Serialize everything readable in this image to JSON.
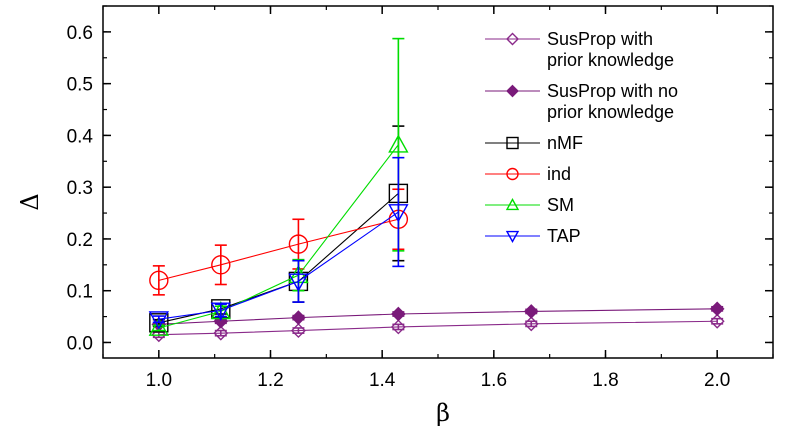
{
  "chart_data": {
    "type": "line",
    "title": "",
    "xlabel": "β",
    "ylabel": "Δ",
    "xlim": [
      0.9,
      2.1
    ],
    "ylim": [
      -0.03,
      0.65
    ],
    "xticks": [
      1.0,
      1.2,
      1.4,
      1.6,
      1.8,
      2.0
    ],
    "xtick_labels": [
      "1.0",
      "1.2",
      "1.4",
      "1.6",
      "1.8",
      "2.0"
    ],
    "yticks": [
      0.0,
      0.1,
      0.2,
      0.3,
      0.4,
      0.5,
      0.6
    ],
    "ytick_labels": [
      "0.0",
      "0.1",
      "0.2",
      "0.3",
      "0.4",
      "0.5",
      "0.6"
    ],
    "grid": false,
    "legend_position": "top-right",
    "series": [
      {
        "name_lines": [
          "SusProp with",
          "prior knowledge"
        ],
        "color": "#8a2a8a",
        "marker": "diamond-open",
        "x": [
          1.0,
          1.111,
          1.25,
          1.429,
          1.667,
          2.0
        ],
        "y": [
          0.015,
          0.018,
          0.023,
          0.03,
          0.036,
          0.041
        ],
        "yerr": [
          0.005,
          0.005,
          0.005,
          0.005,
          0.005,
          0.005
        ]
      },
      {
        "name_lines": [
          "SusProp with no",
          "prior knowledge"
        ],
        "color": "#7a1a7a",
        "marker": "diamond-filled",
        "x": [
          1.0,
          1.111,
          1.25,
          1.429,
          1.667,
          2.0
        ],
        "y": [
          0.035,
          0.041,
          0.048,
          0.055,
          0.06,
          0.065
        ],
        "yerr": [
          0.004,
          0.004,
          0.004,
          0.004,
          0.004,
          0.004
        ]
      },
      {
        "name_lines": [
          "nMF"
        ],
        "color": "#000000",
        "marker": "square-open",
        "x": [
          1.0,
          1.111,
          1.25,
          1.429
        ],
        "y": [
          0.038,
          0.065,
          0.118,
          0.288
        ],
        "yerr": [
          0.006,
          0.01,
          0.04,
          0.13
        ]
      },
      {
        "name_lines": [
          "ind"
        ],
        "color": "#ff0000",
        "marker": "circle-open",
        "x": [
          1.0,
          1.111,
          1.25,
          1.429
        ],
        "y": [
          0.12,
          0.15,
          0.19,
          0.238
        ],
        "yerr": [
          0.028,
          0.038,
          0.048,
          0.058
        ]
      },
      {
        "name_lines": [
          "SM"
        ],
        "color": "#00dd00",
        "marker": "triangle-up-open",
        "x": [
          1.0,
          1.111,
          1.25,
          1.429
        ],
        "y": [
          0.028,
          0.06,
          0.13,
          0.382
        ],
        "yerr": [
          0.005,
          0.01,
          0.03,
          0.205
        ]
      },
      {
        "name_lines": [
          "TAP"
        ],
        "color": "#0000ff",
        "marker": "triangle-down-open",
        "x": [
          1.0,
          1.111,
          1.25,
          1.429
        ],
        "y": [
          0.045,
          0.062,
          0.118,
          0.252
        ],
        "yerr": [
          0.006,
          0.012,
          0.04,
          0.105
        ]
      }
    ]
  }
}
